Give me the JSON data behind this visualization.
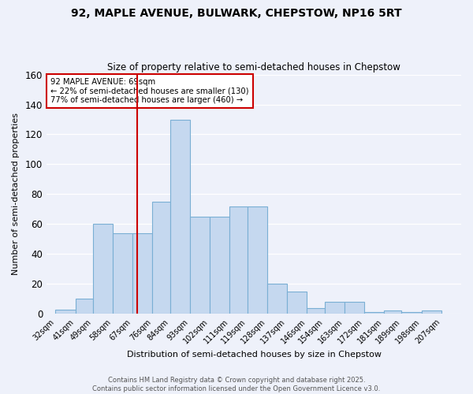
{
  "title_line1": "92, MAPLE AVENUE, BULWARK, CHEPSTOW, NP16 5RT",
  "title_line2": "Size of property relative to semi-detached houses in Chepstow",
  "xlabel": "Distribution of semi-detached houses by size in Chepstow",
  "ylabel": "Number of semi-detached properties",
  "footer_line1": "Contains HM Land Registry data © Crown copyright and database right 2025.",
  "footer_line2": "Contains public sector information licensed under the Open Government Licence v3.0.",
  "annotation_line1": "92 MAPLE AVENUE: 69sqm",
  "annotation_line2": "← 22% of semi-detached houses are smaller (130)",
  "annotation_line3": "77% of semi-detached houses are larger (460) →",
  "bar_left_edges": [
    32,
    41,
    49,
    58,
    67,
    76,
    84,
    93,
    102,
    111,
    119,
    128,
    137,
    146,
    154,
    163,
    172,
    181,
    189,
    198
  ],
  "bar_widths": [
    9,
    8,
    9,
    9,
    9,
    8,
    9,
    9,
    9,
    8,
    9,
    9,
    9,
    8,
    9,
    9,
    9,
    8,
    9,
    9
  ],
  "bar_heights": [
    3,
    10,
    60,
    54,
    54,
    75,
    130,
    65,
    65,
    72,
    72,
    20,
    15,
    4,
    8,
    8,
    1,
    2,
    1,
    2
  ],
  "bar_color": "#c5d8ef",
  "bar_edge_color": "#7aafd4",
  "tick_labels": [
    "32sqm",
    "41sqm",
    "49sqm",
    "58sqm",
    "67sqm",
    "76sqm",
    "84sqm",
    "93sqm",
    "102sqm",
    "111sqm",
    "119sqm",
    "128sqm",
    "137sqm",
    "146sqm",
    "154sqm",
    "163sqm",
    "172sqm",
    "181sqm",
    "189sqm",
    "198sqm",
    "207sqm"
  ],
  "tick_positions": [
    32,
    41,
    49,
    58,
    67,
    76,
    84,
    93,
    102,
    111,
    119,
    128,
    137,
    146,
    154,
    163,
    172,
    181,
    189,
    198,
    207
  ],
  "ylim": [
    0,
    160
  ],
  "yticks": [
    0,
    20,
    40,
    60,
    80,
    100,
    120,
    140,
    160
  ],
  "xlim": [
    28,
    216
  ],
  "vline_x": 69,
  "vline_color": "#cc0000",
  "background_color": "#eef1fa",
  "grid_color": "#ffffff",
  "annotation_box_facecolor": "#ffffff",
  "annotation_box_edgecolor": "#cc0000"
}
